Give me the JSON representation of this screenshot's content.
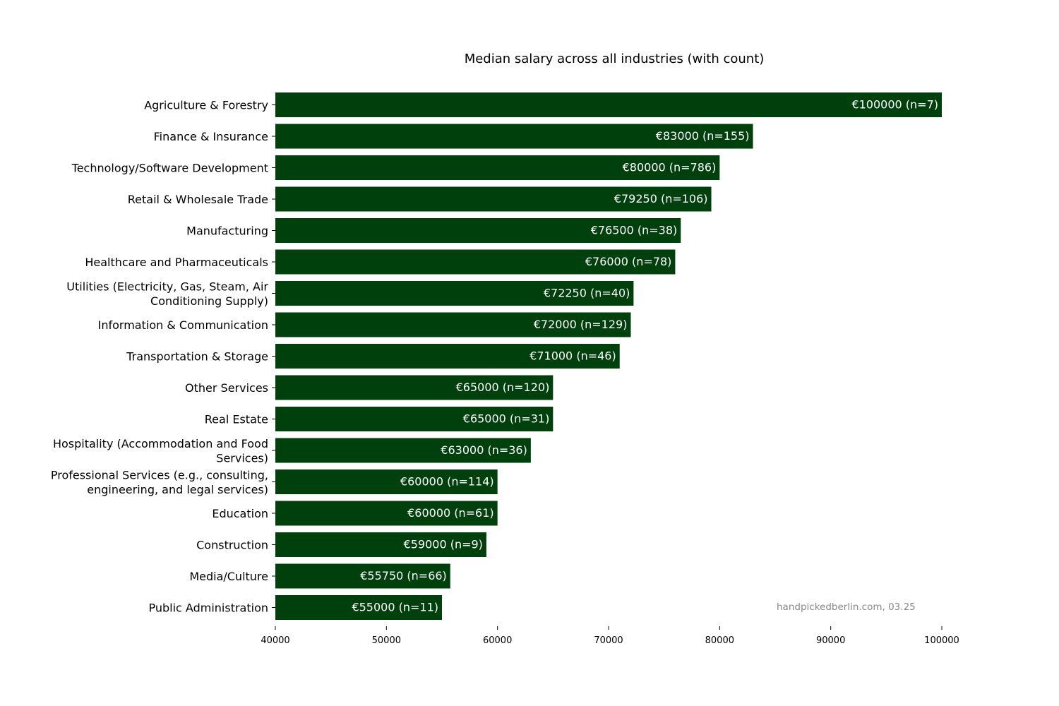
{
  "chart_data": {
    "type": "bar",
    "orientation": "horizontal",
    "title": "Median salary across all industries (with count)",
    "xlabel": "",
    "ylabel": "",
    "xlim": [
      40000,
      100000
    ],
    "x_ticks": [
      "40000",
      "50000",
      "60000",
      "70000",
      "80000",
      "90000",
      "100000"
    ],
    "grid": false,
    "bar_color": "#00400c",
    "categories": [
      "Agriculture & Forestry",
      "Finance & Insurance",
      "Technology/Software Development",
      "Retail & Wholesale Trade",
      "Manufacturing",
      "Healthcare and Pharmaceuticals",
      "Utilities (Electricity, Gas, Steam, Air\nConditioning Supply)",
      "Information & Communication",
      "Transportation & Storage",
      "Other Services",
      "Real Estate",
      "Hospitality (Accommodation and Food\nServices)",
      "Professional Services (e.g., consulting,\nengineering, and legal services)",
      "Education",
      "Construction",
      "Media/Culture",
      "Public Administration"
    ],
    "values": [
      100000,
      83000,
      80000,
      79250,
      76500,
      76000,
      72250,
      72000,
      71000,
      65000,
      65000,
      63000,
      60000,
      60000,
      59000,
      55750,
      55000
    ],
    "counts": [
      7,
      155,
      786,
      106,
      38,
      78,
      40,
      129,
      46,
      120,
      31,
      36,
      114,
      61,
      9,
      66,
      11
    ],
    "data_labels": [
      "€100000 (n=7)",
      "€83000 (n=155)",
      "€80000 (n=786)",
      "€79250 (n=106)",
      "€76500 (n=38)",
      "€76000 (n=78)",
      "€72250 (n=40)",
      "€72000 (n=129)",
      "€71000 (n=46)",
      "€65000 (n=120)",
      "€65000 (n=31)",
      "€63000 (n=36)",
      "€60000 (n=114)",
      "€60000 (n=61)",
      "€59000 (n=9)",
      "€55750 (n=66)",
      "€55000 (n=11)"
    ],
    "annotation": "handpickedberlin.com, 03.25"
  }
}
